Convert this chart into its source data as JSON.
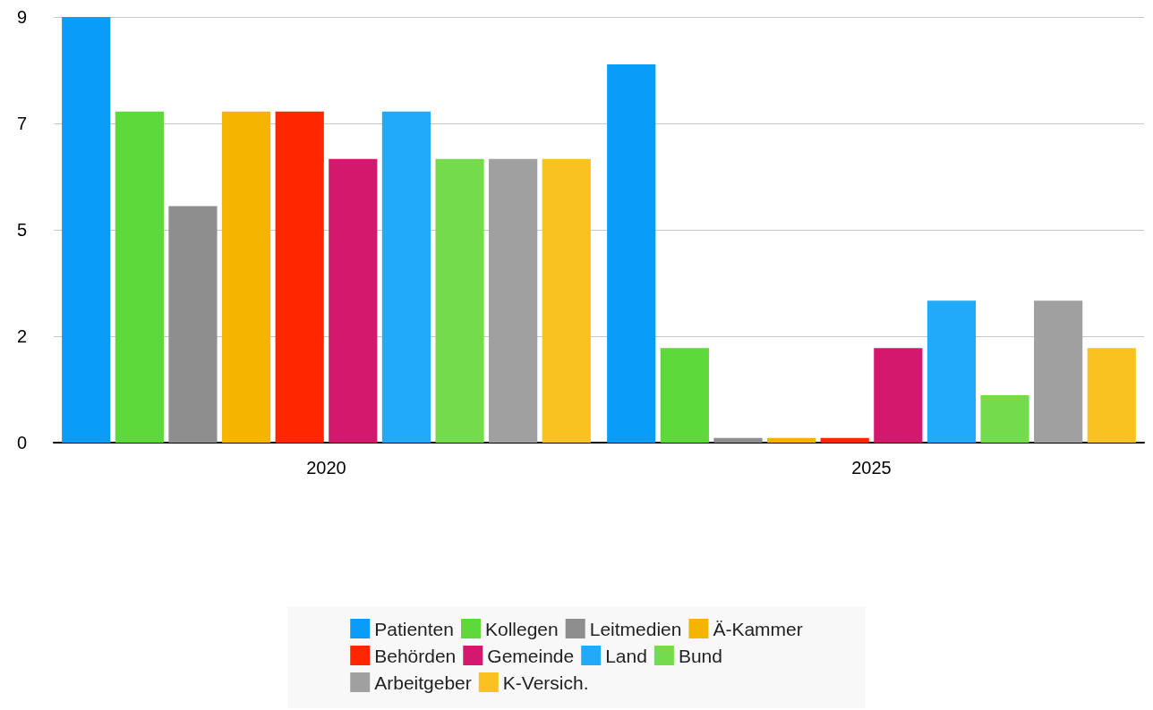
{
  "chart_data": {
    "type": "bar",
    "categories": [
      "2020",
      "2025"
    ],
    "series": [
      {
        "name": "Patienten",
        "color": "#0a9cf9",
        "values": [
          9,
          8
        ]
      },
      {
        "name": "Kollegen",
        "color": "#5ed93a",
        "values": [
          7,
          2
        ]
      },
      {
        "name": "Leitmedien",
        "color": "#8e8e8e",
        "values": [
          5,
          0.1
        ]
      },
      {
        "name": "Ä-Kammer",
        "color": "#f5b400",
        "values": [
          7,
          0.1
        ]
      },
      {
        "name": "Behörden",
        "color": "#ff2600",
        "values": [
          7,
          0.1
        ]
      },
      {
        "name": "Gemeinde",
        "color": "#d4186e",
        "values": [
          6,
          2
        ]
      },
      {
        "name": "Land",
        "color": "#20aaf9",
        "values": [
          7,
          3
        ]
      },
      {
        "name": "Bund",
        "color": "#74dc4c",
        "values": [
          6,
          1
        ]
      },
      {
        "name": "Arbeitgeber",
        "color": "#a0a0a0",
        "values": [
          6,
          3
        ]
      },
      {
        "name": "K-Versich.",
        "color": "#f8c220",
        "values": [
          6,
          2
        ]
      }
    ],
    "ylim": [
      0,
      9
    ],
    "yticks": [
      0,
      {
        "value": 2.25,
        "label": "2"
      },
      {
        "value": 4.5,
        "label": "5"
      },
      {
        "value": 6.75,
        "label": "7"
      },
      9
    ],
    "grid": "y",
    "legend": "bottom"
  }
}
